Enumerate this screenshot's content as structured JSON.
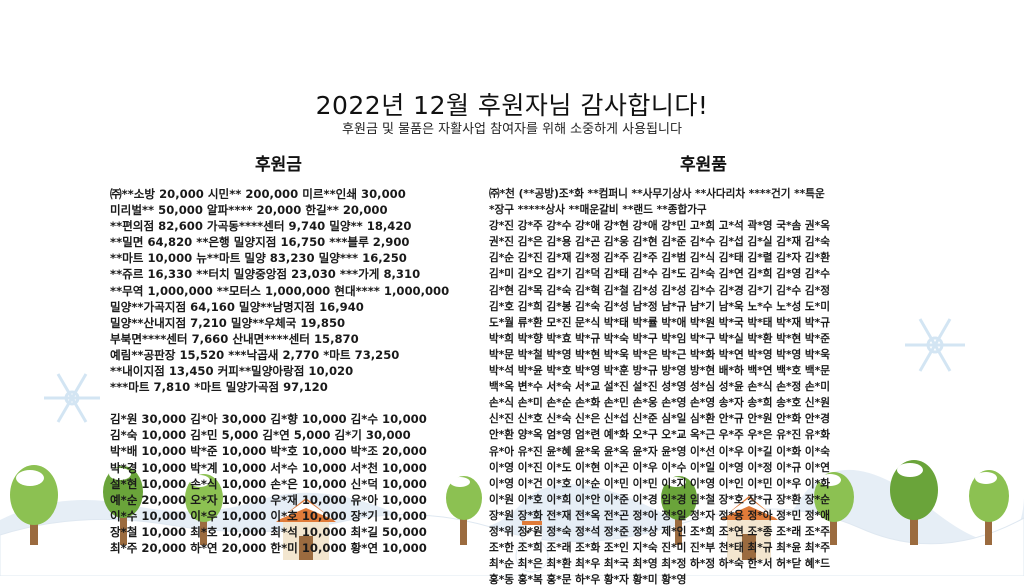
{
  "header": {
    "title": "2022년 12월 후원자님 감사합니다!",
    "subtitle": "후원금 및 물품은 자활사업 참여자를 위해 소중하게 사용됩니다"
  },
  "donations": {
    "heading": "후원금",
    "group1": [
      "㈜**소방  20,000   시민** 200,000   미르**인쇄  30,000",
      "미리벌**  50,000   알파****  20,000   한길**  20,000",
      "**편의점  82,600   가곡동****센터  9,740   밀양**  18,420",
      "**밀면  64,820   **은행 밀양지점  16,750   ***블루  2,900",
      "**마트  10,000   뉴**마트 밀양  83,230   밀양***  16,250",
      "**쥬르  16,330   **터치 밀양중앙점  23,030   ***가게  8,310",
      "**무역  1,000,000   **모터스  1,000,000   현대****  1,000,000",
      "밀양**가곡지점  64,160   밀양**남명지점  16,940",
      "밀양**산내지점  7,210   밀양**우체국  19,850",
      "부북면****센터  7,660   산내면****센터  15,870",
      "예림**공판장  15,520   ***낙곱새  2,770   *마트  73,250",
      "**내이지점  13,450   커피**밀양아랑점  10,020",
      "***마트  7,810   *마트 밀양가곡점  97,120"
    ],
    "group2": [
      "김*원 30,000  김*아 30,000  김*향 10,000  김*수 10,000",
      "김*숙 10,000  김*민  5,000  김*연  5,000  김*기 30,000",
      "박*배 10,000  박*준 10,000  박*호 10,000  박*조 20,000",
      "박*경 10,000  박*계 10,000  서*수 10,000  서*천 10,000",
      "설*현 10,000  손*식 10,000  손*은 10,000  신*덕 10,000",
      "예*순 20,000  오*자 10,000  우*재 10,000  유*아 10,000",
      "이*수 10,000  이*우 10,000  이*호 10,000  장*기 10,000",
      "장*철 10,000  최*호 10,000  최*석 10,000  최*길 50,000",
      "최*주 20,000  하*연 20,000  한*미 10,000  황*연 10,000"
    ]
  },
  "goods": {
    "heading": "후원품",
    "lines": [
      "㈜*천  (**공방)조*화   **컴퍼니   **사무기상사   **사다리차   ****건기   **특운",
      "*장구   *****상사   **매운갈비   **랜드   **종합가구",
      "강*진 강*주 강*수 강*애 강*현 강*애 강*민 고*희 고*석 곽*영 국*솜 권*옥",
      "권*진 김*은 김*용 김*곤 김*웅 김*현 김*준 김*수 김*섭 김*실 김*재 김*숙",
      "김*순 김*진 김*재 김*정 김*주 김*주 김*범 김*식 김*태 김*렬 김*자 김*환",
      "김*미 김*오 김*기 김*덕 김*태 김*수 김*도 김*숙 김*연 김*희 김*영 김*수",
      "김*현 김*목 김*숙 김*혁 김*철 김*성 김*성 김*수 김*경 김*기 김*수 김*정",
      "김*호 김*희 김*봉 김*숙 김*성 남*정 남*규 남*기 남*욱 노*수 노*성 도*미",
      "도*월 류*환 모*진 문*식 박*태 박*률 박*애 박*원 박*국 박*태 박*재 박*규",
      "박*희 박*향 박*효 박*규 박*숙 박*구 박*임 박*구 박*실 박*환 박*현 박*준",
      "박*문 박*철 박*영 박*현 박*욱 박*은 박*근 박*화 박*연 박*영 박*영 박*욱",
      "박*석 박*윤 박*호 박*영 박*훈 방*규 방*영 방*현 배*하 백*연 백*호 백*문",
      "백*옥 변*수 서*숙 서*교 설*진 설*진 성*영 성*심 성*윤 손*식 손*정 손*미",
      "손*식 손*미 손*순 손*화 손*민 손*웅 손*영 손*영 송*자 송*희 송*호 신*원",
      "신*진 신*호 신*숙 신*은 신*섭 신*준 심*일 심*환 안*규 안*원 안*화 안*경",
      "안*환 양*옥 엄*영 엄*련 예*화 오*구 오*교 옥*근 우*주 우*은 유*진 유*화",
      "유*아 유*진 윤*혜 윤*욱 윤*옥 윤*자 윤*영 이*선 이*우 이*길 이*화 이*숙",
      "이*영 이*진 이*도 이*현 이*곤 이*우 이*수 이*일 이*영 이*정 이*규 이*연",
      "이*영 이*건 이*호 이*순 이*민 이*민 이*지 이*영 이*인 이*민 이*우 이*화",
      "이*원 이*호 이*희 이*안 이*준 이*경 임*경 임*철 장*호 장*규 장*환 장*순",
      "장*원 장*화 전*재 전*옥 전*곤 정*아 정*일 정*자 정*용 정*아 정*민 정*애",
      "정*위 정*원 정*숙 정*석 정*준 정*상 제*인 조*희 조*연 조*종 조*래 조*주",
      "조*한 조*희 조*래 조*화 조*인 지*숙 진*미 진*부 천*태 최*규 최*윤 최*주",
      "최*순 최*은 최*환 최*우 최*국 최*영 최*정 하*정 하*숙 한*서 허*닫 혜*드",
      "홍*동 홍*복 홍*문 하*우 황*자 황*미 황*영"
    ]
  },
  "colors": {
    "snow": "#ffffff",
    "snow_shadow": "#e6eef6",
    "tree_green": "#8cc152",
    "tree_dark": "#6aa43a",
    "trunk": "#9b6b3f",
    "house_wall": "#f3e6cf",
    "roof": "#e07b39",
    "sky_flake": "#cfe3f2"
  },
  "scene": {
    "flake_icons": [
      "snowflake-icon",
      "snowflake-icon"
    ],
    "decor_icons": [
      "tree-icon",
      "house-icon",
      "snowman-icon"
    ]
  }
}
